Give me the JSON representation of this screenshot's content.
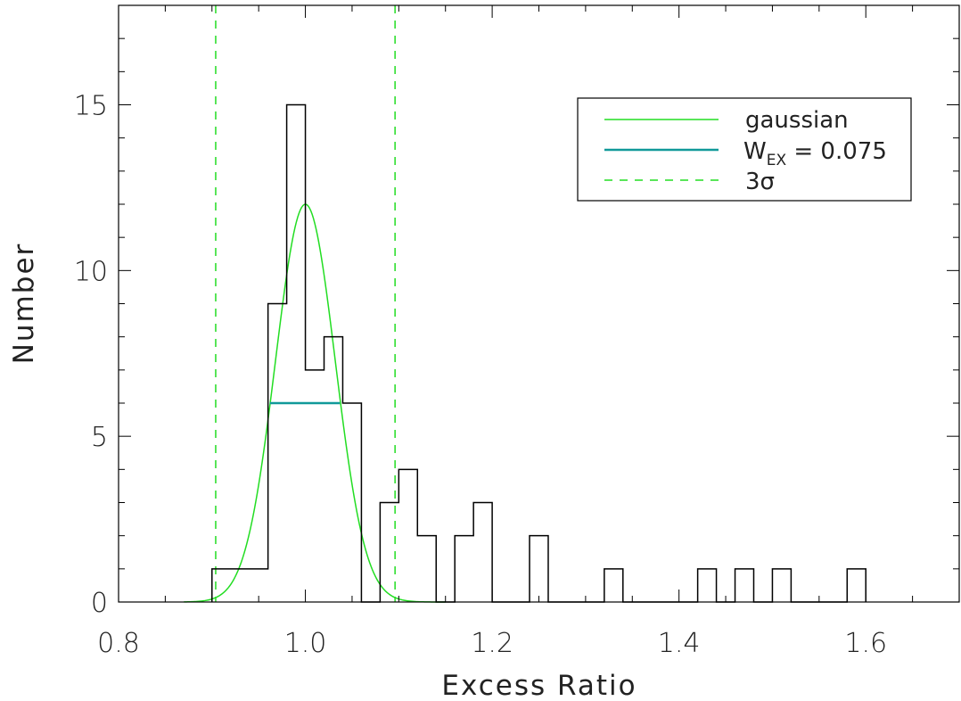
{
  "chart_data": {
    "type": "histogram",
    "title": "",
    "xlabel": "Excess Ratio",
    "ylabel": "Number",
    "xlim": [
      0.8,
      1.7
    ],
    "ylim": [
      0,
      18
    ],
    "xticks": [
      "0.8",
      "1.0",
      "1.2",
      "1.4",
      "1.6"
    ],
    "xtick_values": [
      0.8,
      1.0,
      1.2,
      1.4,
      1.6
    ],
    "yticks": [
      "0",
      "5",
      "10",
      "15"
    ],
    "ytick_values": [
      0,
      5,
      10,
      15
    ],
    "grid": false,
    "legend_position": "top-right",
    "histogram": {
      "bin_width": 0.02,
      "bins": [
        {
          "x": 0.91,
          "count": 1
        },
        {
          "x": 0.93,
          "count": 1
        },
        {
          "x": 0.95,
          "count": 1
        },
        {
          "x": 0.97,
          "count": 9
        },
        {
          "x": 0.99,
          "count": 15
        },
        {
          "x": 1.01,
          "count": 7
        },
        {
          "x": 1.03,
          "count": 8
        },
        {
          "x": 1.05,
          "count": 6
        },
        {
          "x": 1.07,
          "count": 0
        },
        {
          "x": 1.09,
          "count": 3
        },
        {
          "x": 1.11,
          "count": 4
        },
        {
          "x": 1.13,
          "count": 2
        },
        {
          "x": 1.15,
          "count": 0
        },
        {
          "x": 1.17,
          "count": 2
        },
        {
          "x": 1.19,
          "count": 3
        },
        {
          "x": 1.21,
          "count": 0
        },
        {
          "x": 1.23,
          "count": 0
        },
        {
          "x": 1.25,
          "count": 2
        },
        {
          "x": 1.27,
          "count": 0
        },
        {
          "x": 1.29,
          "count": 0
        },
        {
          "x": 1.31,
          "count": 0
        },
        {
          "x": 1.33,
          "count": 1
        },
        {
          "x": 1.35,
          "count": 0
        },
        {
          "x": 1.37,
          "count": 0
        },
        {
          "x": 1.39,
          "count": 0
        },
        {
          "x": 1.41,
          "count": 0
        },
        {
          "x": 1.43,
          "count": 1
        },
        {
          "x": 1.45,
          "count": 0
        },
        {
          "x": 1.47,
          "count": 1
        },
        {
          "x": 1.49,
          "count": 0
        },
        {
          "x": 1.51,
          "count": 1
        },
        {
          "x": 1.53,
          "count": 0
        },
        {
          "x": 1.55,
          "count": 0
        },
        {
          "x": 1.57,
          "count": 0
        },
        {
          "x": 1.59,
          "count": 1
        }
      ]
    },
    "gaussian": {
      "name": "gaussian",
      "mean": 1.0,
      "sigma": 0.032,
      "amplitude": 12,
      "x_range": [
        0.87,
        1.15
      ],
      "color": "#22dd22"
    },
    "width_marker": {
      "label_main": "W",
      "label_sub": "EX",
      "label_value": " = 0.075",
      "x_range": [
        0.962,
        1.037
      ],
      "y": 6,
      "color": "#119999"
    },
    "sigma_lines": {
      "label": "3σ",
      "x_values": [
        0.904,
        1.096
      ],
      "color": "#22dd22"
    }
  }
}
